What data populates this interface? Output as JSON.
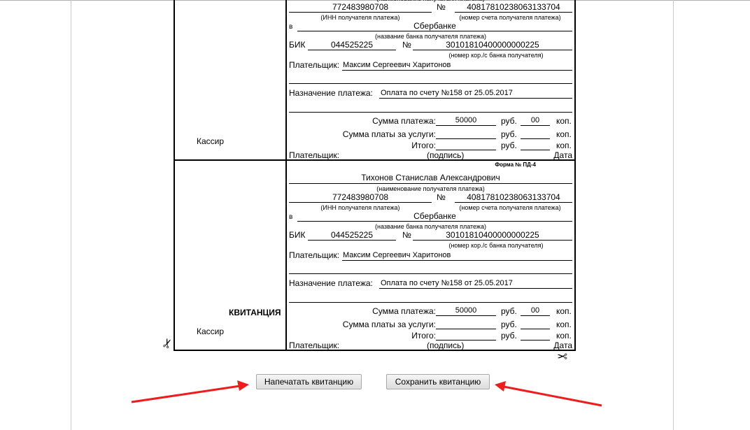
{
  "receipt": {
    "form_label": "Форма № ПД-4",
    "title": "КВИТАНЦИЯ",
    "cashier": "Кассир",
    "recipient_name": "Тихонов Станислав Александрович",
    "recipient_caption": "(наименование получателя платежа)",
    "inn": "772483980708",
    "inn_caption": "(ИНН получателя платежа)",
    "number_sign": "№",
    "account": "40817810238063133704",
    "account_caption": "(номер счета получателя платежа)",
    "bank_prefix": "в",
    "bank": "Сбербанке",
    "bank_caption": "(название банка получателя платежа)",
    "bik_label": "БИК",
    "bik": "044525225",
    "corr_account": "30101810400000000225",
    "corr_caption": "(номер кор./с банка получателя)",
    "payer_label": "Плательщик:",
    "payer": "Максим Сергеевич Харитонов",
    "purpose_label": "Назначение платежа:",
    "purpose": "Оплата по счету №158 от 25.05.2017",
    "sum_label": "Сумма платежа:",
    "sum_rub": "50000",
    "sum_kop": "00",
    "services_label": "Сумма платы за услуги:",
    "total_label": "Итого:",
    "rub": "руб.",
    "kop": "коп.",
    "signature_label": "Плательщик:",
    "signature_caption": "(подпись)",
    "date_label": "Дата"
  },
  "buttons": {
    "print": "Напечатать квитанцию",
    "save": "Сохранить квитанцию"
  },
  "colors": {
    "arrow": "#ee1c1c"
  }
}
